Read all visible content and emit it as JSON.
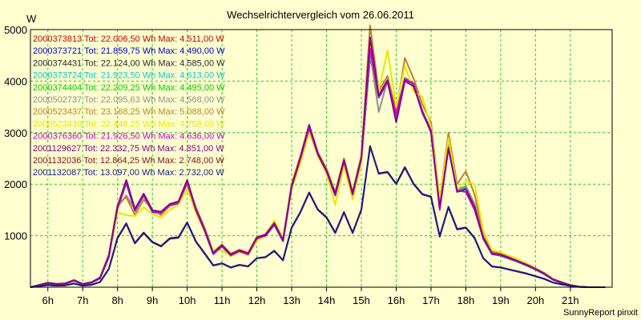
{
  "chart_data": {
    "type": "line",
    "title": "Wechselrichtervergleich vom 26.06.2011",
    "ylabel": "W",
    "footer": "SunnyReport pinxit",
    "ylim": [
      0,
      5000
    ],
    "xlim": [
      5.5,
      22.2
    ],
    "grid": true,
    "legend_position": "top-left",
    "y_ticks": [
      1000,
      2000,
      3000,
      4000,
      5000
    ],
    "x_ticks": [
      {
        "hour": 6,
        "label": "6h"
      },
      {
        "hour": 7,
        "label": "7h"
      },
      {
        "hour": 8,
        "label": "8h"
      },
      {
        "hour": 9,
        "label": "9h"
      },
      {
        "hour": 10,
        "label": "10h"
      },
      {
        "hour": 11,
        "label": "11h"
      },
      {
        "hour": 12,
        "label": "12h"
      },
      {
        "hour": 13,
        "label": "13h"
      },
      {
        "hour": 14,
        "label": "14h"
      },
      {
        "hour": 15,
        "label": "15h"
      },
      {
        "hour": 16,
        "label": "16h"
      },
      {
        "hour": 17,
        "label": "17h"
      },
      {
        "hour": 18,
        "label": "18h"
      },
      {
        "hour": 19,
        "label": "19h"
      },
      {
        "hour": 20,
        "label": "20h"
      },
      {
        "hour": 21,
        "label": "21h"
      }
    ],
    "x_hours": [
      5.5,
      6,
      6.25,
      6.5,
      6.75,
      7,
      7.25,
      7.5,
      7.75,
      8,
      8.25,
      8.5,
      8.75,
      9,
      9.25,
      9.5,
      9.75,
      10,
      10.25,
      10.5,
      10.75,
      11,
      11.25,
      11.5,
      11.75,
      12,
      12.25,
      12.5,
      12.75,
      13,
      13.25,
      13.5,
      13.75,
      14,
      14.25,
      14.5,
      14.75,
      15,
      15.25,
      15.5,
      15.75,
      16,
      16.25,
      16.5,
      16.75,
      17,
      17.25,
      17.5,
      17.75,
      18,
      18.25,
      18.5,
      18.75,
      19,
      19.25,
      19.5,
      19.75,
      20,
      20.25,
      20.5,
      20.75,
      21,
      21.25,
      21.5,
      22
    ],
    "series": [
      {
        "name": "2000373813 Tot: 22.006,50 Wh Max: 4.511,00 W",
        "color": "#cc0000",
        "values": [
          0,
          80,
          60,
          70,
          130,
          60,
          90,
          180,
          600,
          1550,
          2050,
          1500,
          1800,
          1480,
          1450,
          1600,
          1650,
          2050,
          1500,
          1100,
          650,
          800,
          620,
          700,
          640,
          950,
          1000,
          1230,
          900,
          1950,
          2500,
          3100,
          2580,
          2250,
          1800,
          2450,
          1800,
          2500,
          4500,
          3700,
          4000,
          3350,
          4050,
          3950,
          3400,
          3050,
          1600,
          2750,
          1880,
          1950,
          1600,
          950,
          650,
          620,
          560,
          500,
          430,
          350,
          260,
          150,
          90,
          40,
          10,
          0,
          0
        ]
      },
      {
        "name": "2000373721 Tot: 21.859,75 Wh Max: 4.490,00 W",
        "color": "#0000cc",
        "values": [
          0,
          75,
          55,
          65,
          125,
          55,
          85,
          170,
          580,
          1530,
          2020,
          1480,
          1780,
          1460,
          1430,
          1580,
          1630,
          2020,
          1480,
          1090,
          640,
          790,
          610,
          690,
          630,
          940,
          990,
          1210,
          890,
          1930,
          2480,
          3080,
          2560,
          2230,
          1780,
          2430,
          1790,
          2480,
          4480,
          3680,
          3980,
          3330,
          4030,
          3930,
          3380,
          3030,
          1590,
          2730,
          1860,
          1930,
          1590,
          940,
          640,
          610,
          550,
          490,
          420,
          340,
          255,
          145,
          85,
          38,
          9,
          0,
          0
        ]
      },
      {
        "name": "2000374431 Tot: 22.124,00 Wh Max: 4.585,00 W",
        "color": "#2a2a2a",
        "values": [
          0,
          85,
          62,
          72,
          135,
          62,
          92,
          185,
          610,
          1560,
          2070,
          1510,
          1810,
          1490,
          1460,
          1610,
          1660,
          2070,
          1510,
          1110,
          660,
          810,
          630,
          710,
          650,
          960,
          1010,
          1240,
          910,
          1960,
          2510,
          3110,
          2590,
          2260,
          1810,
          2460,
          1810,
          2510,
          4580,
          3710,
          4010,
          3360,
          4060,
          3960,
          3410,
          3060,
          1610,
          2760,
          1890,
          1960,
          1610,
          960,
          660,
          630,
          570,
          505,
          435,
          355,
          265,
          152,
          92,
          41,
          10,
          0,
          0
        ]
      },
      {
        "name": "2000373724 Tot: 21.923,50 Wh Max: 4.613,00 W",
        "color": "#00cccc",
        "values": [
          0,
          78,
          58,
          68,
          128,
          58,
          88,
          175,
          590,
          1540,
          2030,
          1490,
          1790,
          1470,
          1440,
          1590,
          1640,
          2030,
          1490,
          1095,
          645,
          795,
          615,
          695,
          635,
          945,
          995,
          1220,
          895,
          1940,
          2490,
          3090,
          2570,
          2240,
          1790,
          2440,
          1795,
          2490,
          4610,
          3690,
          3990,
          3340,
          4040,
          3940,
          3390,
          3040,
          1595,
          2740,
          1870,
          1940,
          1595,
          945,
          645,
          615,
          555,
          495,
          425,
          345,
          258,
          148,
          88,
          39,
          9,
          0,
          0
        ]
      },
      {
        "name": "2000374404 Tot: 22.209,25 Wh Max: 4.495,00 W",
        "color": "#00cc00",
        "values": [
          0,
          82,
          61,
          71,
          132,
          61,
          91,
          182,
          605,
          1555,
          2060,
          1505,
          1805,
          1485,
          1455,
          1605,
          1655,
          2060,
          1505,
          1105,
          655,
          805,
          625,
          705,
          645,
          955,
          1005,
          1235,
          905,
          1955,
          2505,
          3105,
          2585,
          2255,
          1805,
          2455,
          1805,
          2505,
          4490,
          3705,
          4005,
          3355,
          4055,
          3955,
          3405,
          3055,
          1605,
          2755,
          1885,
          1955,
          1605,
          955,
          655,
          625,
          565,
          502,
          432,
          352,
          262,
          151,
          91,
          40,
          10,
          0,
          0
        ]
      },
      {
        "name": "2000502737 Tot: 22.095,63 Wh Max: 4.568,00 W",
        "color": "#909090",
        "values": [
          0,
          84,
          61,
          71,
          134,
          61,
          91,
          184,
          608,
          1558,
          1780,
          1508,
          1808,
          1488,
          1458,
          1608,
          1658,
          2000,
          1508,
          1108,
          658,
          808,
          628,
          708,
          648,
          958,
          1008,
          1238,
          908,
          1958,
          2508,
          3108,
          2588,
          2258,
          1808,
          2458,
          1808,
          2508,
          4560,
          3400,
          4008,
          3358,
          4058,
          3958,
          3408,
          3058,
          1608,
          2758,
          1888,
          1958,
          1608,
          958,
          658,
          628,
          568,
          504,
          434,
          354,
          264,
          152,
          92,
          41,
          10,
          0,
          0
        ]
      },
      {
        "name": "2000523437 Tot: 23.168,25 Wh Max: 5.088,00 W",
        "color": "#c08030",
        "values": [
          0,
          88,
          65,
          75,
          140,
          65,
          95,
          190,
          630,
          1600,
          1750,
          1400,
          1700,
          1500,
          1400,
          1580,
          1650,
          2000,
          1550,
          1150,
          690,
          830,
          650,
          730,
          670,
          980,
          1030,
          1280,
          940,
          2000,
          2550,
          3150,
          2620,
          2300,
          1850,
          2500,
          1850,
          2550,
          5080,
          3800,
          4100,
          3420,
          4450,
          4050,
          3550,
          3200,
          1700,
          3000,
          2000,
          2250,
          1800,
          1000,
          700,
          660,
          600,
          530,
          460,
          375,
          280,
          160,
          98,
          44,
          11,
          0,
          0
        ]
      },
      {
        "name": "2000523439 Tot: 22.448,25 Wh Max: 4.758,00 W",
        "color": "#e8e800",
        "values": [
          0,
          86,
          63,
          73,
          138,
          63,
          93,
          188,
          620,
          1450,
          1400,
          1380,
          1550,
          1420,
          1350,
          1500,
          1600,
          1900,
          1450,
          1080,
          700,
          720,
          600,
          680,
          620,
          900,
          1000,
          1300,
          950,
          1900,
          2400,
          3000,
          2550,
          2200,
          1600,
          2350,
          1700,
          2400,
          4750,
          3800,
          4600,
          3500,
          4300,
          3800,
          3700,
          3100,
          1700,
          2900,
          1900,
          2050,
          2000,
          1100,
          720,
          680,
          610,
          540,
          460,
          370,
          270,
          158,
          95,
          43,
          11,
          0,
          0
        ]
      },
      {
        "name": "2000376360 Tot: 21.926,50 Wh Max: 4.636,00 W",
        "color": "#cc00cc",
        "values": [
          0,
          79,
          59,
          69,
          129,
          59,
          89,
          177,
          595,
          1545,
          2040,
          1495,
          1795,
          1475,
          1445,
          1595,
          1645,
          2040,
          1495,
          1098,
          648,
          798,
          618,
          698,
          638,
          948,
          998,
          1225,
          898,
          1945,
          2495,
          3095,
          2575,
          2245,
          1795,
          2445,
          1798,
          2495,
          4630,
          3695,
          3995,
          3345,
          4045,
          3945,
          3395,
          3045,
          1500,
          2700,
          1875,
          1850,
          1500,
          948,
          648,
          618,
          558,
          498,
          428,
          348,
          260,
          149,
          89,
          39,
          9,
          0,
          0
        ]
      },
      {
        "name": "2001129627 Tot: 22.332,75 Wh Max: 4.851,00 W",
        "color": "#880088",
        "values": [
          0,
          86,
          64,
          74,
          137,
          64,
          94,
          187,
          615,
          1565,
          2080,
          1515,
          1815,
          1495,
          1465,
          1615,
          1665,
          2080,
          1515,
          1115,
          665,
          815,
          635,
          715,
          655,
          965,
          1015,
          1245,
          915,
          1965,
          2515,
          3150,
          2595,
          2265,
          1815,
          2465,
          1815,
          2515,
          4850,
          3720,
          4020,
          3200,
          4000,
          3900,
          3420,
          3000,
          1550,
          2700,
          1850,
          1900,
          1550,
          960,
          660,
          630,
          570,
          505,
          436,
          356,
          266,
          153,
          93,
          41,
          10,
          0,
          0
        ]
      },
      {
        "name": "2001132036 Tot: 12.864,25 Wh Max: 2.748,00 W",
        "color": "#8b0a1a",
        "values": [
          0,
          40,
          30,
          35,
          70,
          30,
          45,
          100,
          350,
          950,
          1230,
          850,
          1050,
          870,
          790,
          940,
          960,
          1250,
          880,
          650,
          420,
          460,
          380,
          430,
          400,
          560,
          580,
          700,
          520,
          1150,
          1450,
          1830,
          1500,
          1350,
          1050,
          1450,
          1050,
          1500,
          2740,
          2200,
          2230,
          2000,
          2320,
          2000,
          1800,
          1750,
          980,
          1550,
          1120,
          1150,
          950,
          560,
          400,
          380,
          340,
          300,
          260,
          210,
          160,
          90,
          55,
          25,
          6,
          0,
          0
        ]
      },
      {
        "name": "2001132087 Tot: 13.097,00 Wh Max: 2.732,00 W",
        "color": "#1a1a88",
        "values": [
          0,
          41,
          31,
          36,
          72,
          31,
          46,
          102,
          355,
          960,
          1240,
          860,
          1060,
          880,
          800,
          950,
          970,
          1260,
          890,
          660,
          425,
          465,
          385,
          435,
          405,
          565,
          585,
          710,
          525,
          1160,
          1460,
          1840,
          1510,
          1360,
          1060,
          1460,
          1060,
          1510,
          2730,
          2210,
          2240,
          2010,
          2330,
          2010,
          1810,
          1760,
          990,
          1560,
          1130,
          1160,
          960,
          565,
          405,
          385,
          345,
          305,
          265,
          215,
          165,
          92,
          56,
          26,
          6,
          0,
          0
        ]
      }
    ]
  }
}
